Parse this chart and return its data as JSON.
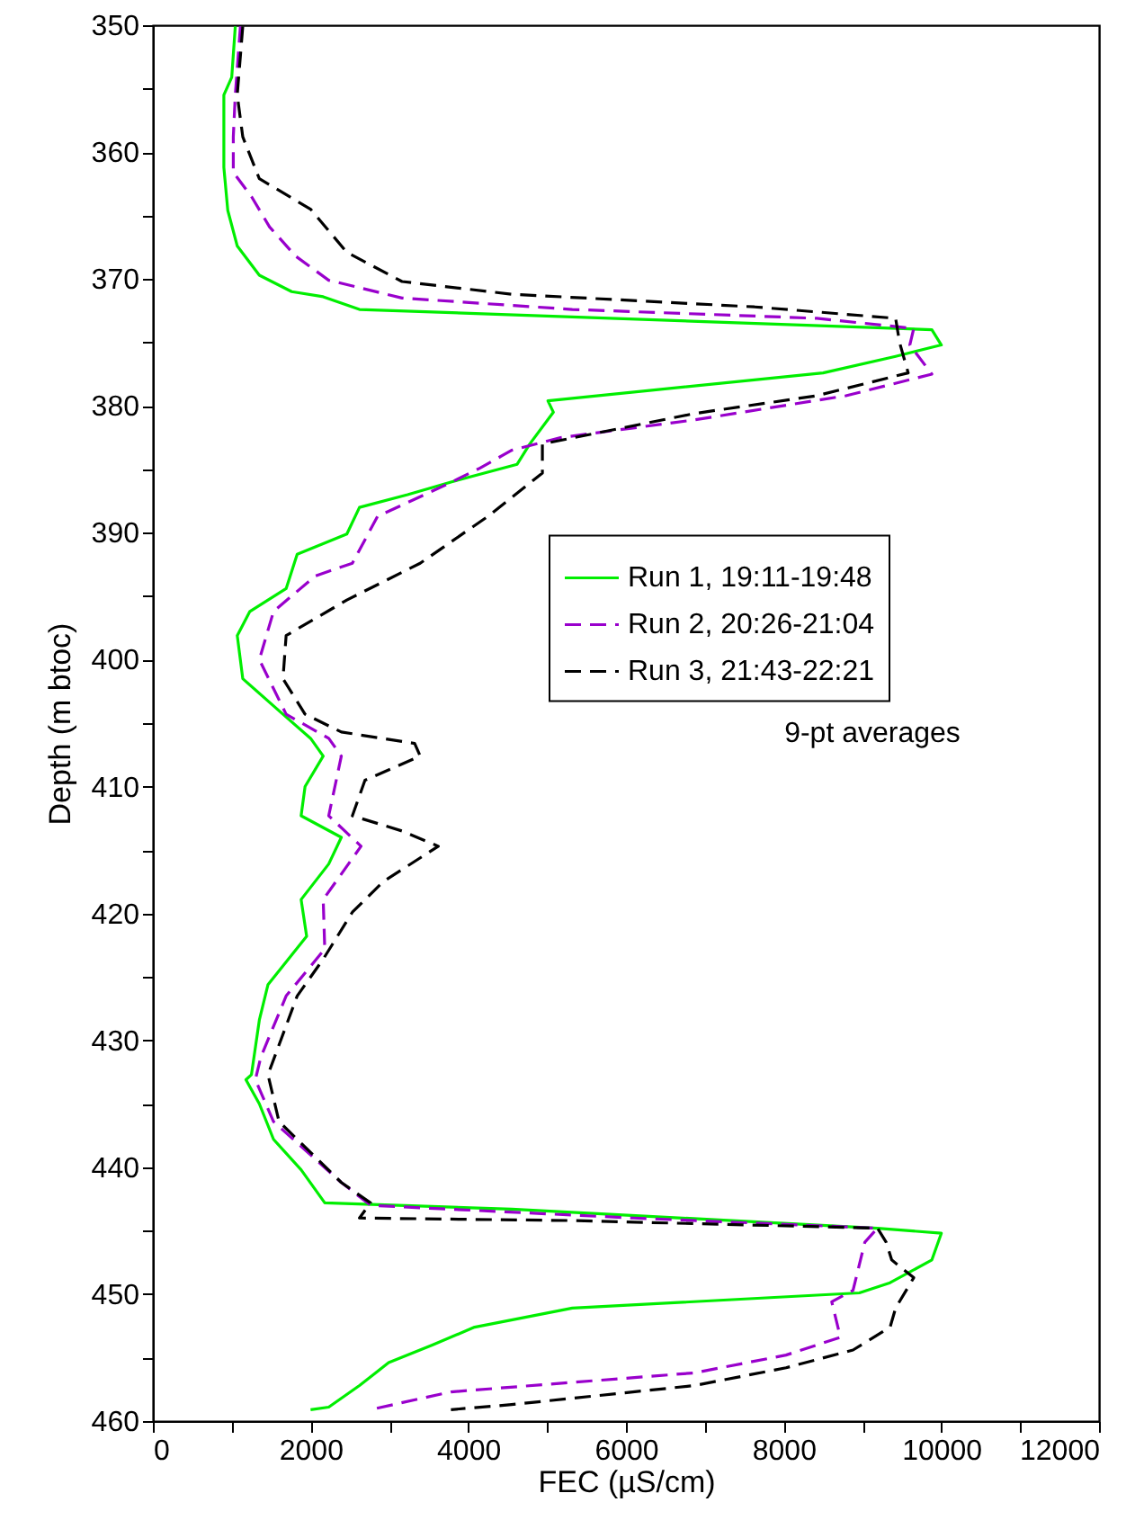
{
  "chart_data": {
    "type": "line",
    "xlabel": "FEC (µS/cm)",
    "ylabel": "Depth (m btoc)",
    "xlim": [
      0,
      12000
    ],
    "ylim": [
      460,
      350
    ],
    "xticks": [
      0,
      {
        "value": 1000,
        "label": null
      },
      2000,
      {
        "value": 3000,
        "label": null
      },
      4000,
      {
        "value": 5000,
        "label": null
      },
      6000,
      {
        "value": 7000,
        "label": null
      },
      8000,
      {
        "value": 9000,
        "label": null
      },
      10000,
      {
        "value": 11000,
        "label": null
      },
      12000
    ],
    "yticks": [
      350,
      {
        "value": 355,
        "label": null
      },
      360,
      {
        "value": 365,
        "label": null
      },
      370,
      {
        "value": 375,
        "label": null
      },
      380,
      {
        "value": 385,
        "label": null
      },
      390,
      {
        "value": 395,
        "label": null
      },
      400,
      {
        "value": 405,
        "label": null
      },
      410,
      {
        "value": 415,
        "label": null
      },
      420,
      {
        "value": 425,
        "label": null
      },
      430,
      {
        "value": 435,
        "label": null
      },
      440,
      {
        "value": 445,
        "label": null
      },
      450,
      {
        "value": 455,
        "label": null
      },
      460
    ],
    "grid": false,
    "legend": "right",
    "marker": "none",
    "annotations": [
      "9-pt averages"
    ],
    "series": [
      {
        "name": "Run 1, 19:11-19:48",
        "color": "#00ee00",
        "line_style": "solid",
        "x": [
          1045,
          1000,
          900,
          900,
          950,
          1070,
          1350,
          1760,
          2160,
          2620,
          9880,
          10000,
          9420,
          8500,
          5010,
          5080,
          4780,
          4620,
          3780,
          3230,
          2620,
          2460,
          1830,
          1690,
          1230,
          1070,
          1140,
          1650,
          2000,
          2160,
          1930,
          1880,
          2390,
          2230,
          1880,
          1950,
          1460,
          1350,
          1250,
          1180,
          1350,
          1530,
          1880,
          2180,
          4550,
          9190,
          10000,
          9880,
          9350,
          8960,
          5320,
          4080,
          3550,
          2990,
          2620,
          2230,
          2000
        ],
        "values": [
          350.1,
          354.1,
          355.5,
          361.2,
          364.6,
          367.4,
          369.7,
          371.0,
          371.4,
          372.4,
          374.0,
          375.2,
          376.1,
          377.4,
          379.6,
          380.5,
          383.0,
          384.6,
          386.0,
          387.0,
          388.0,
          390.1,
          391.7,
          394.4,
          396.2,
          398.1,
          401.5,
          404.3,
          406.2,
          407.6,
          410.0,
          412.3,
          414.0,
          416.1,
          418.9,
          421.8,
          425.6,
          428.4,
          432.7,
          433.1,
          435.0,
          437.8,
          440.2,
          442.8,
          443.3,
          444.8,
          445.2,
          447.3,
          449.1,
          449.9,
          451.1,
          452.6,
          454.0,
          455.4,
          457.2,
          458.9,
          459.1
        ]
      },
      {
        "name": "Run 2, 20:26-21:04",
        "color": "#9900cc",
        "line_style": "dashed",
        "x": [
          1110,
          1045,
          1020,
          1020,
          1250,
          1480,
          1810,
          2230,
          3160,
          5320,
          8420,
          9650,
          9600,
          9880,
          8790,
          6870,
          5170,
          4550,
          4150,
          3690,
          2850,
          2530,
          2060,
          1530,
          1350,
          1690,
          2230,
          2390,
          2230,
          2640,
          2160,
          2180,
          1690,
          1370,
          1300,
          1530,
          2390,
          2760,
          6100,
          9190,
          9030,
          8880,
          8610,
          8720,
          8030,
          6870,
          3780,
          2760
        ],
        "values": [
          350.1,
          355.5,
          358.8,
          361.6,
          363.5,
          365.9,
          368.2,
          370.1,
          371.5,
          372.4,
          373.1,
          373.9,
          375.2,
          377.5,
          379.2,
          381.1,
          382.5,
          383.5,
          384.9,
          386.3,
          388.7,
          392.4,
          393.4,
          396.2,
          400.0,
          404.3,
          406.2,
          407.6,
          412.3,
          414.7,
          418.9,
          422.8,
          426.5,
          431.3,
          433.1,
          436.4,
          441.2,
          443.0,
          444.0,
          444.8,
          445.9,
          449.7,
          450.6,
          453.4,
          454.8,
          456.2,
          457.7,
          459.1
        ]
      },
      {
        "name": "Run 3, 21:43-22:21",
        "color": "#000000",
        "line_style": "dashed",
        "x": [
          1140,
          1070,
          1140,
          1350,
          2000,
          2460,
          3160,
          4550,
          7630,
          9420,
          9470,
          9580,
          8420,
          6870,
          4940,
          4940,
          4250,
          3390,
          2460,
          1690,
          1650,
          1930,
          2390,
          3320,
          3390,
          2690,
          2530,
          3160,
          3620,
          2920,
          2530,
          2160,
          1830,
          1460,
          1600,
          2390,
          2760,
          2620,
          5320,
          9190,
          9300,
          9370,
          9650,
          9420,
          9350,
          8880,
          8030,
          6870,
          4550,
          3780
        ],
        "values": [
          350.1,
          355.5,
          358.8,
          362.1,
          364.5,
          367.9,
          370.2,
          371.2,
          372.2,
          373.1,
          375.0,
          377.4,
          379.2,
          380.6,
          383.0,
          385.3,
          388.7,
          392.4,
          395.3,
          398.1,
          401.5,
          404.3,
          405.7,
          406.6,
          407.6,
          409.5,
          412.3,
          413.5,
          414.7,
          417.5,
          419.9,
          423.6,
          426.5,
          432.7,
          436.4,
          441.2,
          442.8,
          444.0,
          444.2,
          444.8,
          445.9,
          447.3,
          448.7,
          451.1,
          452.6,
          454.4,
          455.8,
          457.2,
          458.7,
          459.1
        ]
      }
    ]
  }
}
